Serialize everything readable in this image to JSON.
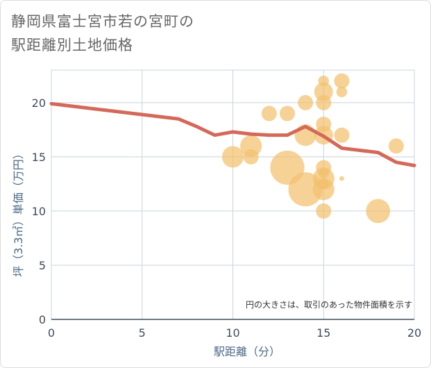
{
  "title_lines": [
    "静岡県富士宮市若の宮町の",
    "駅距離別土地価格"
  ],
  "note": "円の大きさは、取引のあった物件面積を示す",
  "colors": {
    "bubble": "#f3c16d",
    "line": "#d4695a",
    "grid": "#c8d3de"
  },
  "chart_data": {
    "type": "scatter",
    "xlabel": "駅距離（分）",
    "ylabel": "坪（3.3㎡）単価（万円）",
    "xlim": [
      0,
      20
    ],
    "ylim": [
      0,
      23
    ],
    "xticks": [
      "0",
      "5",
      "10",
      "15",
      "20"
    ],
    "yticks": [
      "0",
      "5",
      "10",
      "15",
      "20"
    ],
    "grid": true,
    "bubbles": [
      {
        "x": 10,
        "y": 15,
        "size": 2
      },
      {
        "x": 11,
        "y": 16,
        "size": 2
      },
      {
        "x": 11,
        "y": 15,
        "size": 1
      },
      {
        "x": 12,
        "y": 19,
        "size": 1
      },
      {
        "x": 13,
        "y": 19,
        "size": 1
      },
      {
        "x": 13,
        "y": 14,
        "size": 5
      },
      {
        "x": 14,
        "y": 20,
        "size": 1
      },
      {
        "x": 14,
        "y": 17,
        "size": 2
      },
      {
        "x": 14,
        "y": 12,
        "size": 5
      },
      {
        "x": 15,
        "y": 22,
        "size": 0.5
      },
      {
        "x": 15,
        "y": 21,
        "size": 1.5
      },
      {
        "x": 15,
        "y": 20,
        "size": 1
      },
      {
        "x": 15,
        "y": 18,
        "size": 1
      },
      {
        "x": 15,
        "y": 17,
        "size": 1.5
      },
      {
        "x": 15,
        "y": 14,
        "size": 1
      },
      {
        "x": 15,
        "y": 13.5,
        "size": 0.5
      },
      {
        "x": 15,
        "y": 13,
        "size": 2
      },
      {
        "x": 15,
        "y": 12.5,
        "size": 0.5
      },
      {
        "x": 15,
        "y": 12,
        "size": 2
      },
      {
        "x": 15,
        "y": 10,
        "size": 1
      },
      {
        "x": 16,
        "y": 22,
        "size": 1
      },
      {
        "x": 16,
        "y": 21,
        "size": 0.5
      },
      {
        "x": 16,
        "y": 17,
        "size": 1
      },
      {
        "x": 16,
        "y": 13,
        "size": 0.1
      },
      {
        "x": 18,
        "y": 10,
        "size": 2.5
      },
      {
        "x": 19,
        "y": 16,
        "size": 1
      }
    ],
    "trend": {
      "x": [
        0,
        1,
        2,
        3,
        4,
        5,
        6,
        7,
        8,
        9,
        10,
        11,
        12,
        13,
        14,
        15,
        16,
        17,
        18,
        19,
        20
      ],
      "y": [
        19.9,
        19.7,
        19.5,
        19.3,
        19.1,
        18.9,
        18.7,
        18.5,
        17.8,
        17.0,
        17.3,
        17.1,
        17.0,
        17.0,
        17.8,
        16.9,
        15.8,
        15.6,
        15.4,
        14.5,
        14.2
      ]
    }
  }
}
